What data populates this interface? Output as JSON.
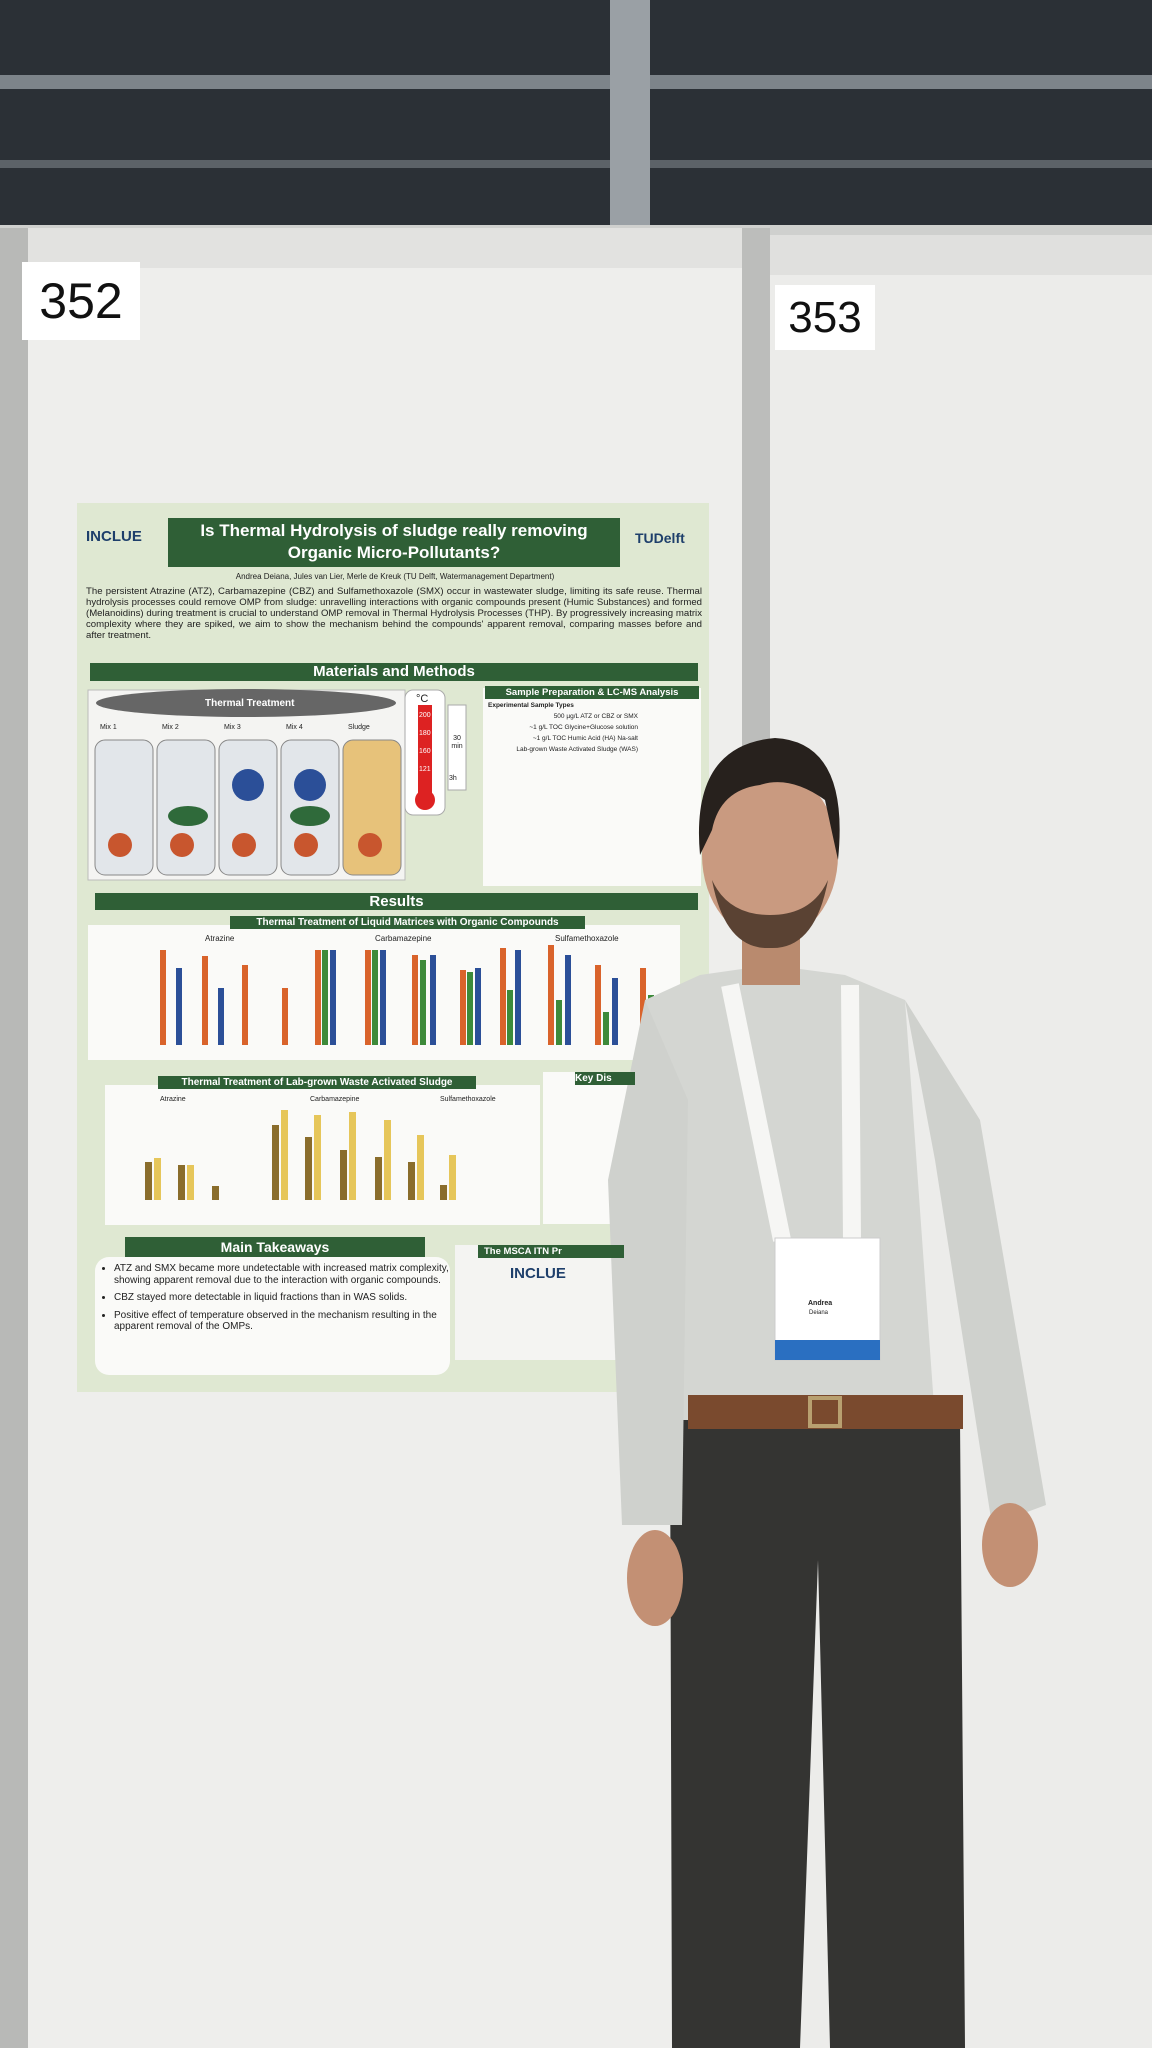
{
  "board_labels": [
    "352",
    "353"
  ],
  "poster": {
    "logo_left": "INCLUE",
    "logo_right": "TUDelft",
    "title": "Is Thermal Hydrolysis of sludge really removing Organic Micro-Pollutants?",
    "authors": "Andrea Deiana, Jules van Lier, Merle de Kreuk (TU Delft, Watermanagement Department)",
    "intro": "The persistent Atrazine (ATZ), Carbamazepine (CBZ) and Sulfamethoxazole (SMX) occur in wastewater sludge, limiting its safe reuse. Thermal hydrolysis processes could remove OMP from sludge: unravelling interactions with organic compounds present (Humic Substances) and formed (Melanoidins) during treatment is crucial to understand OMP removal in Thermal Hydrolysis Processes (THP). By progressively increasing matrix complexity where they are spiked, we aim to show the mechanism behind the compounds' apparent removal, comparing masses before and after treatment.",
    "methods_heading": "Materials and Methods",
    "thermal_treatment": "Thermal Treatment",
    "mixes": [
      "Mix 1",
      "Mix 2",
      "Mix 3",
      "Mix 4",
      "Sludge"
    ],
    "temperature_unit": "°C",
    "temperatures": [
      "200",
      "180",
      "160",
      "121"
    ],
    "times": [
      "30 min",
      "3h"
    ],
    "sample_prep_heading": "Sample Preparation & LC-MS Analysis",
    "sample_rows": [
      "Experimental Sample Types",
      "500 µg/L ATZ or CBZ or SMX",
      "~1 g/L TOC Glycine+Glucose solution",
      "~1 g/L TOC Humic Acid (HA) Na-salt",
      "Lab-grown Waste Activated Sludge (WAS)"
    ],
    "results_heading": "Results",
    "chart1_title": "Thermal Treatment of Liquid Matrices with Organic Compounds",
    "chart2_title": "Thermal Treatment of Lab-grown Waste Activated Sludge",
    "compounds": [
      "Atrazine",
      "Carbamazepine",
      "Sulfamethoxazole"
    ],
    "key_heading": "Key Dis",
    "takeaways_heading": "Main Takeaways",
    "takeaways": [
      "ATZ and SMX became more undetectable with increased matrix complexity, showing apparent removal due to the interaction with organic compounds.",
      "CBZ stayed more detectable in liquid fractions than in WAS solids.",
      "Positive effect of temperature observed in the mechanism resulting in the apparent removal of the OMPs."
    ],
    "msca_heading": "The MSCA ITN Pr"
  },
  "badge": {
    "name": "Andrea",
    "surname": "Deiana"
  }
}
